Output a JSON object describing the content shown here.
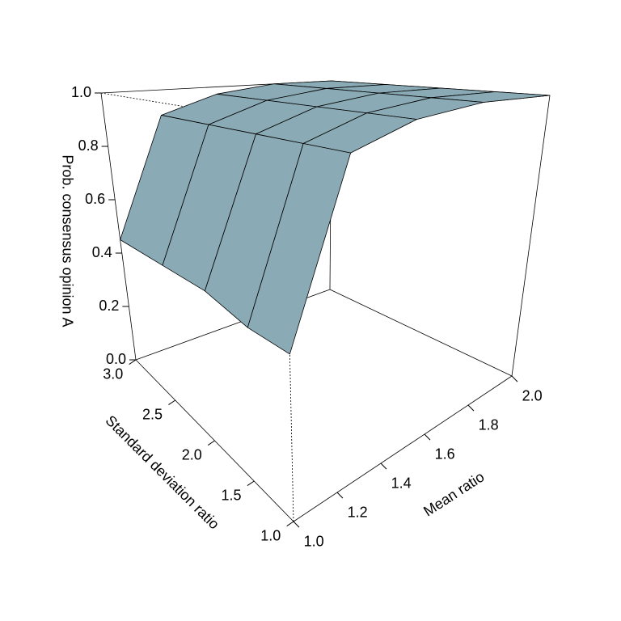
{
  "chart_data": {
    "type": "surface",
    "xlabel": "Mean ratio",
    "ylabel": "Standard deviation ratio",
    "zlabel": "Prob. consensus opinion A",
    "x": [
      1,
      1.25,
      1.5,
      1.75,
      2
    ],
    "y": [
      1,
      1.5,
      2,
      2.5,
      3
    ],
    "z": [
      [
        0.42,
        0.42,
        0.45,
        0.45,
        0.45
      ],
      [
        0.9,
        0.9,
        0.9,
        0.9,
        0.9
      ],
      [
        0.97,
        0.97,
        0.97,
        0.97,
        0.97
      ],
      [
        1,
        1,
        1,
        1,
        1
      ],
      [
        1,
        1,
        1,
        1,
        1
      ]
    ],
    "xlim": [
      1,
      2
    ],
    "ylim": [
      1,
      3
    ],
    "zlim": [
      0,
      1
    ],
    "xticks": [
      {
        "value": 1,
        "label": "1.0"
      },
      1.2,
      1.4,
      1.6,
      1.8,
      {
        "value": 2,
        "label": "2.0"
      }
    ],
    "yticks": [
      {
        "value": 1,
        "label": "1.0"
      },
      1.5,
      {
        "value": 2,
        "label": "2.0"
      },
      2.5,
      {
        "value": 3,
        "label": "3.0"
      }
    ],
    "zticks": [
      {
        "value": 0,
        "label": "0.0"
      },
      0.2,
      0.4,
      0.6,
      0.8,
      {
        "value": 1,
        "label": "1.0"
      }
    ],
    "color": "#8aaab5"
  }
}
